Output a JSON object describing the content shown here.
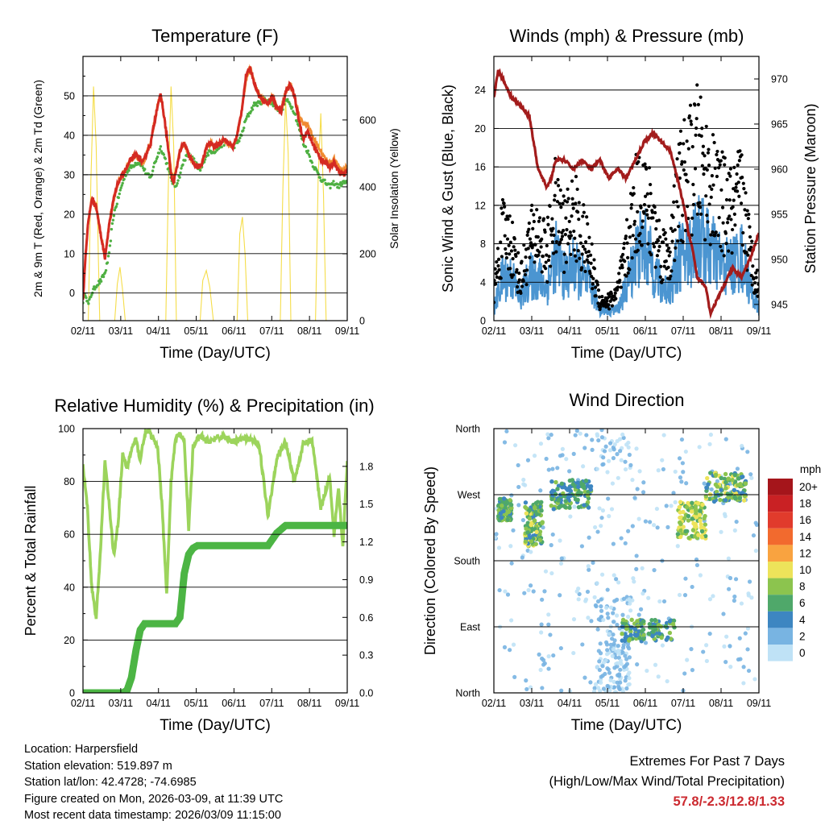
{
  "x_tick_labels": [
    "02/11",
    "03/11",
    "04/11",
    "05/11",
    "06/11",
    "07/11",
    "08/11",
    "09/11"
  ],
  "time_axis_label": "Time (Day/UTC)",
  "temperature": {
    "title": "Temperature (F)",
    "ylabel_left": "2m & 9m T (Red, Orange) & 2m Td (Green)",
    "ylabel_right": "Solar Insolation (Yellow)",
    "left_ticks": [
      0,
      10,
      20,
      30,
      40,
      50
    ],
    "right_ticks": [
      0,
      200,
      400,
      600
    ],
    "colors": {
      "t2m": "#d42a22",
      "t9m": "#f08a30",
      "td": "#4fb043",
      "solar": "#f5dd4a"
    }
  },
  "winds": {
    "title": "Winds (mph) & Pressure (mb)",
    "ylabel_left": "Sonic Wind & Gust (Blue, Black)",
    "ylabel_right": "Station Pressure (Maroon)",
    "left_ticks": [
      0,
      4,
      8,
      12,
      16,
      20,
      24
    ],
    "right_ticks": [
      945,
      950,
      955,
      960,
      965,
      970
    ],
    "colors": {
      "wind": "#4b95d1",
      "gust": "#000000",
      "pressure": "#a31c1c"
    }
  },
  "humidity": {
    "title": "Relative Humidity (%) & Precipitation (in)",
    "ylabel": "Percent & Total Rainfall",
    "left_ticks": [
      0,
      20,
      40,
      60,
      80,
      100
    ],
    "right_ticks": [
      "0.0",
      "0.3",
      "0.6",
      "0.9",
      "1.2",
      "1.5",
      "1.8"
    ],
    "colors": {
      "rh": "#9cd45c",
      "precip": "#4cb544"
    }
  },
  "direction": {
    "title": "Wind Direction",
    "ylabel": "Direction (Colored By Speed)",
    "dir_labels": [
      "North",
      "East",
      "South",
      "West",
      "North"
    ],
    "legend_title": "mph",
    "legend_labels": [
      "20+",
      "18",
      "16",
      "14",
      "12",
      "10",
      "8",
      "6",
      "4",
      "2",
      "0"
    ],
    "legend_colors": [
      "#a5151b",
      "#c92124",
      "#e13b2c",
      "#f26a2e",
      "#f9a340",
      "#ede35a",
      "#8cc44e",
      "#4fa86a",
      "#3d86c1",
      "#78b4e2",
      "#bfe2f6"
    ]
  },
  "chart_data": [
    {
      "type": "line",
      "title": "Temperature (F)",
      "xlabel": "Time (Day/UTC)",
      "ylabel": "2m & 9m T (Red, Orange) & 2m Td (Green)",
      "x": [
        0,
        0.3,
        0.6,
        1.0,
        1.5,
        2.0,
        2.5,
        3.0,
        3.2,
        3.5,
        4.0,
        4.5,
        5.0,
        5.5,
        6.0,
        6.5,
        6.8,
        7.0,
        7.3,
        7.7,
        8.0,
        8.5,
        8.8,
        9.0,
        9.5,
        10.0,
        10.2,
        10.5,
        11.0,
        11.5,
        12.0,
        12.5,
        13.0,
        13.3,
        13.5,
        13.8,
        14.0,
        14.5,
        15.0,
        15.5,
        16.0,
        16.5,
        17.0,
        17.5,
        18.0,
        18.5,
        19.0,
        19.5,
        20.0,
        20.5,
        21.0,
        21.5,
        22.0,
        22.5,
        23.0,
        23.5,
        24.0,
        24.5,
        25.0,
        25.5,
        26.0,
        26.5,
        27.0,
        27.5,
        28.0,
        28.5,
        29.0,
        29.5,
        30.0
      ],
      "series": [
        {
          "name": "2m T",
          "values": [
            -2,
            10,
            18,
            24,
            22,
            15,
            9,
            18,
            20,
            24,
            28,
            30,
            32,
            34,
            35,
            34,
            33,
            34,
            36,
            38,
            42,
            48,
            50,
            48,
            40,
            30,
            28,
            30,
            36,
            38,
            35,
            33,
            32,
            32,
            33,
            35,
            37,
            38,
            37,
            38,
            39,
            38,
            37,
            40,
            46,
            55,
            57,
            53,
            50,
            49,
            48,
            50,
            47,
            46,
            51,
            53,
            50,
            44,
            39,
            41,
            38,
            36,
            34,
            33,
            32,
            33,
            31,
            30,
            31
          ]
        },
        {
          "name": "9m T",
          "values": [
            -2,
            10,
            18,
            24,
            22,
            15,
            9,
            18,
            20,
            24,
            28,
            30,
            32,
            34,
            35,
            34,
            33,
            34,
            36,
            38,
            42,
            48,
            50,
            48,
            40,
            31,
            29,
            30,
            36,
            38,
            35,
            33,
            32,
            32,
            33,
            35,
            37,
            38,
            37,
            38,
            39,
            38,
            37,
            40,
            46,
            54,
            57,
            53,
            50,
            49,
            48,
            50,
            47,
            46,
            51,
            53,
            50,
            45,
            43,
            43,
            40,
            38,
            36,
            34,
            33,
            34,
            32,
            31,
            32
          ]
        },
        {
          "name": "2m Td",
          "values": [
            -2,
            0,
            -3,
            0,
            2,
            3,
            5,
            10,
            15,
            20,
            24,
            28,
            31,
            32,
            33,
            33,
            32,
            31,
            30,
            29,
            32,
            35,
            37,
            36,
            33,
            29,
            28,
            27,
            30,
            34,
            35,
            34,
            32,
            31,
            32,
            34,
            35,
            36,
            36,
            37,
            38,
            38,
            37,
            38,
            40,
            44,
            46,
            48,
            48,
            49,
            49,
            48,
            47,
            46,
            49,
            48,
            46,
            42,
            38,
            36,
            33,
            31,
            29,
            28,
            27,
            28,
            27,
            28,
            28
          ]
        }
      ],
      "solar_x": [
        0.6,
        0.9,
        1.2,
        1.5,
        1.7,
        1.9,
        3.6,
        3.9,
        4.2,
        4.5,
        4.8,
        9.4,
        9.7,
        10.0,
        10.3,
        10.6,
        13.3,
        13.6,
        14.0,
        14.4,
        14.8,
        17.5,
        17.8,
        18.1,
        18.4,
        18.7,
        22.4,
        22.7,
        23.0,
        23.3,
        23.6,
        26.4,
        26.7,
        27.0,
        27.3,
        27.6
      ],
      "solar": [
        0,
        420,
        700,
        520,
        250,
        0,
        0,
        110,
        160,
        90,
        0,
        0,
        420,
        700,
        520,
        0,
        0,
        120,
        150,
        100,
        0,
        0,
        260,
        310,
        200,
        0,
        0,
        400,
        660,
        500,
        0,
        0,
        430,
        620,
        380,
        0
      ],
      "ylim": [
        -7,
        60
      ],
      "solar_ylim": [
        0,
        790
      ]
    },
    {
      "type": "scatter",
      "title": "Winds (mph) & Pressure (mb)",
      "xlabel": "Time (Day/UTC)",
      "ylabel": "Sonic Wind & Gust (Blue, Black)",
      "x": [
        0,
        1,
        2,
        3,
        4,
        5,
        6,
        7,
        8,
        9,
        10,
        11,
        12,
        13,
        14,
        15,
        16,
        17,
        18,
        19,
        20,
        21,
        22,
        23,
        24,
        25,
        26,
        27,
        28,
        29,
        30
      ],
      "series": [
        {
          "name": "Sonic Wind (mean)",
          "values": [
            1,
            4,
            4,
            2,
            4,
            4,
            3,
            6,
            4,
            5,
            4,
            3,
            1,
            1,
            1,
            3,
            6,
            7,
            5,
            3,
            3,
            6,
            6,
            8,
            7,
            6,
            5,
            5,
            6,
            3,
            1
          ]
        },
        {
          "name": "Gust (mean)",
          "values": [
            3,
            9,
            8,
            4,
            8,
            9,
            7,
            12,
            9,
            11,
            9,
            6,
            2,
            2,
            3,
            7,
            12,
            13,
            10,
            7,
            7,
            14,
            15,
            17,
            15,
            13,
            12,
            11,
            13,
            7,
            3
          ]
        }
      ],
      "pressure_x": [
        0,
        0.5,
        1,
        2,
        3,
        4,
        4.5,
        5,
        5.5,
        6,
        6.5,
        7,
        8,
        9,
        10,
        11,
        12,
        13,
        14,
        15,
        16,
        17,
        18,
        19,
        20,
        21,
        21.5,
        22,
        22.5,
        23,
        24,
        24.5,
        25,
        26,
        27,
        28,
        29,
        30
      ],
      "pressure": [
        968,
        971,
        970,
        968,
        967,
        966,
        963,
        960,
        959,
        958,
        959,
        961,
        961,
        960,
        961,
        960,
        961,
        959,
        960,
        959,
        961,
        963,
        964,
        963,
        962,
        958,
        956,
        953,
        951,
        948,
        947,
        944,
        945,
        947,
        949,
        948,
        950,
        953
      ],
      "ylim": [
        0,
        27.5
      ],
      "pressure_ylim": [
        943.2,
        972.5
      ]
    },
    {
      "type": "line",
      "title": "Relative Humidity (%) & Precipitation (in)",
      "xlabel": "Time (Day/UTC)",
      "ylabel": "Percent & Total Rainfall",
      "x": [
        0,
        0.5,
        1,
        1.5,
        2,
        2.5,
        3,
        3.5,
        4,
        4.5,
        5,
        5.5,
        6,
        6.5,
        7,
        7.5,
        8,
        8.5,
        9,
        9.5,
        10,
        10.5,
        11,
        11.5,
        12,
        12.5,
        13,
        13.5,
        14,
        15,
        16,
        17,
        18,
        19,
        20,
        21,
        22,
        23,
        24,
        25,
        26,
        27,
        28,
        28.5,
        29,
        29.5,
        30
      ],
      "series": [
        {
          "name": "Relative Humidity",
          "values": [
            86,
            70,
            40,
            28,
            55,
            88,
            70,
            52,
            65,
            90,
            85,
            92,
            96,
            88,
            98,
            99,
            96,
            92,
            70,
            37,
            80,
            96,
            98,
            95,
            62,
            93,
            96,
            97,
            95,
            96,
            97,
            95,
            96,
            96,
            94,
            67,
            89,
            95,
            80,
            94,
            96,
            70,
            82,
            60,
            78,
            55,
            87
          ]
        },
        {
          "name": "Total Precipitation",
          "values": [
            0,
            0,
            0,
            0,
            0,
            0,
            0,
            0,
            0,
            0,
            0.02,
            0.12,
            0.33,
            0.5,
            0.55,
            0.55,
            0.55,
            0.55,
            0.55,
            0.55,
            0.55,
            0.55,
            0.6,
            0.95,
            1.1,
            1.15,
            1.17,
            1.17,
            1.17,
            1.17,
            1.17,
            1.17,
            1.17,
            1.17,
            1.17,
            1.17,
            1.27,
            1.33,
            1.33,
            1.33,
            1.33,
            1.33,
            1.33,
            1.33,
            1.33,
            1.33,
            1.33
          ]
        }
      ],
      "ylim": [
        0,
        100
      ],
      "precip_ylim": [
        0,
        2.1
      ]
    },
    {
      "type": "scatter",
      "title": "Wind Direction",
      "xlabel": "Time (Day/UTC)",
      "ylabel": "Direction (Colored By Speed)",
      "clusters": [
        {
          "x_range": [
            0.5,
            2.0
          ],
          "dir_deg": [
            235,
            265
          ],
          "speed": [
            4,
            9
          ]
        },
        {
          "x_range": [
            3.5,
            5.5
          ],
          "dir_deg": [
            200,
            260
          ],
          "speed": [
            4,
            10
          ]
        },
        {
          "x_range": [
            6.5,
            11.0
          ],
          "dir_deg": [
            250,
            290
          ],
          "speed": [
            3,
            8
          ]
        },
        {
          "x_range": [
            14.5,
            20.5
          ],
          "dir_deg": [
            70,
            100
          ],
          "speed": [
            3,
            9
          ]
        },
        {
          "x_range": [
            20.8,
            24.0
          ],
          "dir_deg": [
            210,
            260
          ],
          "speed": [
            6,
            11
          ]
        },
        {
          "x_range": [
            24.0,
            28.5
          ],
          "dir_deg": [
            260,
            300
          ],
          "speed": [
            4,
            10
          ]
        }
      ],
      "ylim": [
        0,
        360
      ],
      "yticks": [
        0,
        90,
        180,
        270,
        360
      ]
    }
  ],
  "footer": {
    "location": "Location: Harpersfield",
    "elevation": "Station elevation: 519.897 m",
    "latlon": "Station lat/lon: 42.4728; -74.6985",
    "created": "Figure created on Mon, 2026-03-09, at 11:39 UTC",
    "latest": "Most recent data timestamp: 2026/03/09 11:15:00"
  },
  "extremes": {
    "line1": "Extremes For Past 7 Days",
    "line2": "(High/Low/Max Wind/Total Precipitation)",
    "values": "57.8/-2.3/12.8/1.33"
  }
}
